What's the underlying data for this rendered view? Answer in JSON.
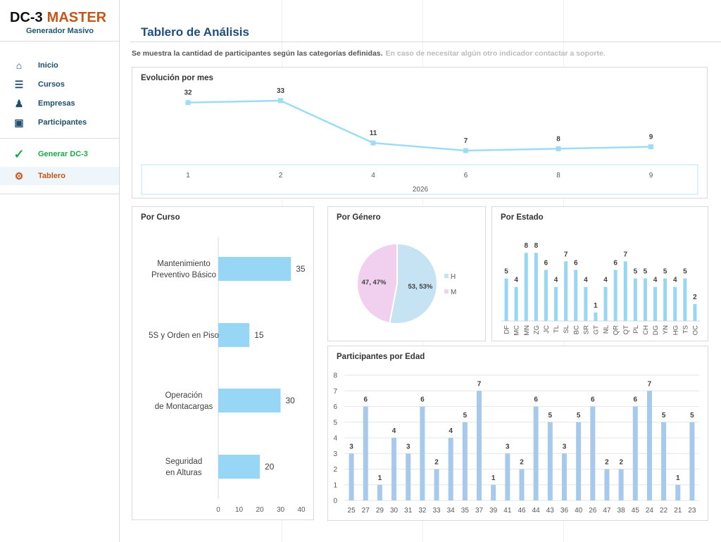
{
  "app": {
    "logo_a": "DC-3",
    "logo_b": "MASTER",
    "subtitle": "Generador Masivo"
  },
  "sidebar": {
    "items": [
      {
        "label": "Inicio",
        "icon": "home-icon",
        "glyph": "⌂"
      },
      {
        "label": "Cursos",
        "icon": "books-icon",
        "glyph": "☰"
      },
      {
        "label": "Empresas",
        "icon": "office-chair-icon",
        "glyph": "♟"
      },
      {
        "label": "Participantes",
        "icon": "id-card-icon",
        "glyph": "▣"
      },
      {
        "label": "Generar DC-3",
        "icon": "checkmark-icon",
        "glyph": "✓"
      },
      {
        "label": "Tablero",
        "icon": "dashboard-icon",
        "glyph": "⚙"
      }
    ]
  },
  "header": {
    "title": "Tablero de Análisis",
    "description": "Se muestra la cantidad de participantes según las categorías definidas.",
    "note": "En caso de necesitar algún otro indicador contactar a soporte."
  },
  "colors": {
    "accent": "#c65518",
    "title": "#1f4e79",
    "line": "#9ddcf5",
    "bar": "#97d7f5",
    "age_bar": "#a7c9ec",
    "pie_h": "#c5e3f3",
    "pie_m": "#f0d0ee"
  },
  "chart_data": [
    {
      "id": "mes",
      "type": "line",
      "title": "Evolución por mes",
      "categories": [
        "1",
        "2",
        "4",
        "6",
        "8",
        "9"
      ],
      "values": [
        32,
        33,
        11,
        7,
        8,
        9
      ],
      "xlabel": "2026"
    },
    {
      "id": "curso",
      "type": "bar",
      "orientation": "horizontal",
      "title": "Por Curso",
      "categories": [
        "Mantenimiento Preventivo Básico",
        "5S y Orden en Piso",
        "Operación de Montacargas",
        "Seguridad en Alturas"
      ],
      "values": [
        35,
        15,
        30,
        20
      ],
      "xlim": [
        0,
        40
      ],
      "xticks": [
        0,
        10,
        20,
        30,
        40
      ]
    },
    {
      "id": "genero",
      "type": "pie",
      "title": "Por Género",
      "categories": [
        "H",
        "M"
      ],
      "values": [
        53,
        47
      ],
      "labels": [
        "53, 53%",
        "47, 47%"
      ],
      "legend": "right"
    },
    {
      "id": "estado",
      "type": "bar",
      "title": "Por Estado",
      "categories": [
        "DF",
        "MC",
        "MN",
        "ZG",
        "JC",
        "TL",
        "SL",
        "BC",
        "SR",
        "GT",
        "NL",
        "QR",
        "QT",
        "PL",
        "CH",
        "DG",
        "YN",
        "HG",
        "TS",
        "OC"
      ],
      "values": [
        5,
        4,
        8,
        8,
        6,
        4,
        7,
        6,
        4,
        1,
        4,
        6,
        7,
        5,
        5,
        4,
        5,
        4,
        5,
        2
      ]
    },
    {
      "id": "edad",
      "type": "bar",
      "title": "Participantes por Edad",
      "categories": [
        "25",
        "27",
        "29",
        "30",
        "31",
        "32",
        "33",
        "34",
        "35",
        "37",
        "39",
        "41",
        "46",
        "44",
        "43",
        "36",
        "40",
        "26",
        "47",
        "38",
        "45",
        "24",
        "22",
        "21",
        "23"
      ],
      "values": [
        3,
        6,
        1,
        4,
        3,
        6,
        2,
        4,
        5,
        7,
        1,
        3,
        2,
        6,
        5,
        3,
        5,
        6,
        2,
        2,
        6,
        7,
        5,
        1,
        5
      ],
      "ylim": [
        0,
        8
      ],
      "yticks": [
        0,
        1,
        2,
        3,
        4,
        5,
        6,
        7,
        8
      ],
      "grid": true
    }
  ]
}
